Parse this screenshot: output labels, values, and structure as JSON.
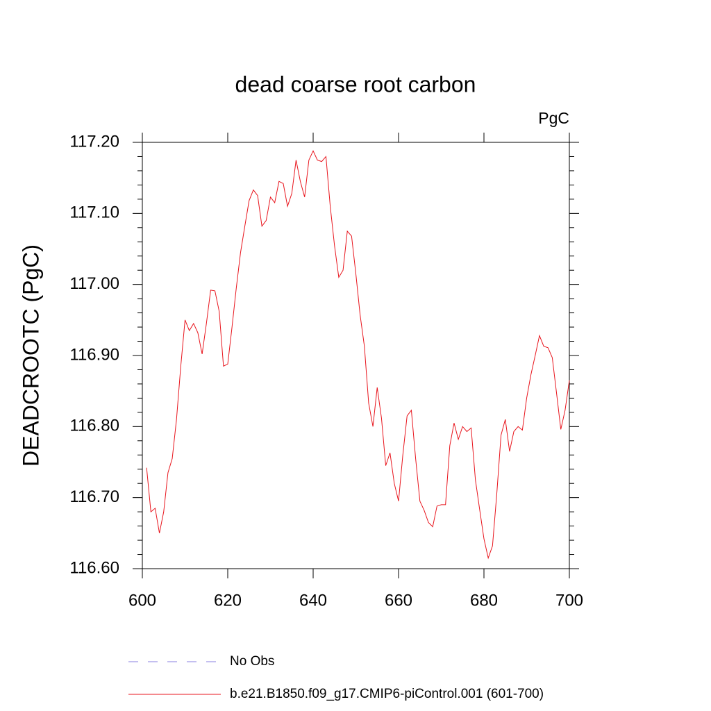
{
  "chart_data": {
    "type": "line",
    "title": "dead coarse root carbon",
    "units": "PgC",
    "ylabel": "DEADCROOTC  (PgC)",
    "x": [
      601,
      602,
      603,
      604,
      605,
      606,
      607,
      608,
      609,
      610,
      611,
      612,
      613,
      614,
      615,
      616,
      617,
      618,
      619,
      620,
      621,
      622,
      623,
      624,
      625,
      626,
      627,
      628,
      629,
      630,
      631,
      632,
      633,
      634,
      635,
      636,
      637,
      638,
      639,
      640,
      641,
      642,
      643,
      644,
      645,
      646,
      647,
      648,
      649,
      650,
      651,
      652,
      653,
      654,
      655,
      656,
      657,
      658,
      659,
      660,
      661,
      662,
      663,
      664,
      665,
      666,
      667,
      668,
      669,
      670,
      671,
      672,
      673,
      674,
      675,
      676,
      677,
      678,
      679,
      680,
      681,
      682,
      683,
      684,
      685,
      686,
      687,
      688,
      689,
      690,
      691,
      692,
      693,
      694,
      695,
      696,
      697,
      698,
      699,
      700
    ],
    "series": [
      {
        "name": "No Obs",
        "color": "#8a7fe0",
        "dashed": true,
        "values": [
          null,
          null,
          null,
          null,
          null,
          null,
          null,
          null,
          null,
          null,
          null,
          null,
          null,
          null,
          null,
          null,
          null,
          null,
          null,
          null,
          null,
          null,
          null,
          null,
          null,
          null,
          null,
          null,
          null,
          null,
          null,
          null,
          null,
          null,
          null,
          null,
          null,
          null,
          null,
          null,
          null,
          null,
          null,
          null,
          null,
          null,
          null,
          null,
          null,
          null,
          null,
          null,
          null,
          null,
          null,
          null,
          null,
          null,
          null,
          null,
          null,
          null,
          null,
          null,
          null,
          null,
          null,
          null,
          null,
          null,
          null,
          null,
          null,
          null,
          null,
          null,
          null,
          null,
          null,
          null,
          null,
          null,
          null,
          null,
          null,
          null,
          null,
          null,
          null,
          null,
          null,
          null,
          null,
          null,
          null,
          null,
          null,
          null,
          null,
          null
        ]
      },
      {
        "name": "b.e21.B1850.f09_g17.CMIP6-piControl.001 (601-700)",
        "color": "#e8141c",
        "dashed": false,
        "values": [
          116.742,
          116.68,
          116.685,
          116.65,
          116.68,
          116.735,
          116.755,
          116.81,
          116.885,
          116.95,
          116.935,
          116.945,
          116.932,
          116.902,
          116.945,
          116.992,
          116.991,
          116.962,
          116.885,
          116.888,
          116.94,
          116.995,
          117.045,
          117.082,
          117.118,
          117.133,
          117.125,
          117.082,
          117.09,
          117.123,
          117.115,
          117.145,
          117.142,
          117.11,
          117.128,
          117.175,
          117.145,
          117.123,
          117.175,
          117.188,
          117.175,
          117.173,
          117.18,
          117.11,
          117.055,
          117.01,
          117.02,
          117.075,
          117.068,
          117.015,
          116.957,
          116.913,
          116.833,
          116.8,
          116.855,
          116.812,
          116.745,
          116.763,
          116.72,
          116.695,
          116.76,
          116.815,
          116.823,
          116.755,
          116.695,
          116.682,
          116.665,
          116.659,
          116.688,
          116.69,
          116.69,
          116.773,
          116.805,
          116.782,
          116.8,
          116.793,
          116.798,
          116.725,
          116.683,
          116.642,
          116.615,
          116.632,
          116.705,
          116.788,
          116.81,
          116.765,
          116.793,
          116.8,
          116.795,
          116.84,
          116.873,
          116.9,
          116.928,
          116.913,
          116.911,
          116.897,
          116.847,
          116.796,
          116.823,
          116.865
        ]
      }
    ],
    "xlim": [
      600,
      700
    ],
    "xticks": [
      600,
      620,
      640,
      660,
      680,
      700
    ],
    "ylim": [
      116.6,
      117.2
    ],
    "yticks": [
      {
        "value": 116.6,
        "label": "116.60"
      },
      {
        "value": 116.7,
        "label": "116.70"
      },
      {
        "value": 116.8,
        "label": "116.80"
      },
      {
        "value": 116.9,
        "label": "116.90"
      },
      {
        "value": 117.0,
        "label": "117.00"
      },
      {
        "value": 117.1,
        "label": "117.10"
      },
      {
        "value": 117.2,
        "label": "117.20"
      }
    ],
    "yminorticks": [
      116.62,
      116.64,
      116.66,
      116.68,
      116.72,
      116.74,
      116.76,
      116.78,
      116.82,
      116.84,
      116.86,
      116.88,
      116.92,
      116.94,
      116.96,
      116.98,
      117.02,
      117.04,
      117.06,
      117.08,
      117.12,
      117.14,
      117.16,
      117.18
    ],
    "grid": false
  }
}
